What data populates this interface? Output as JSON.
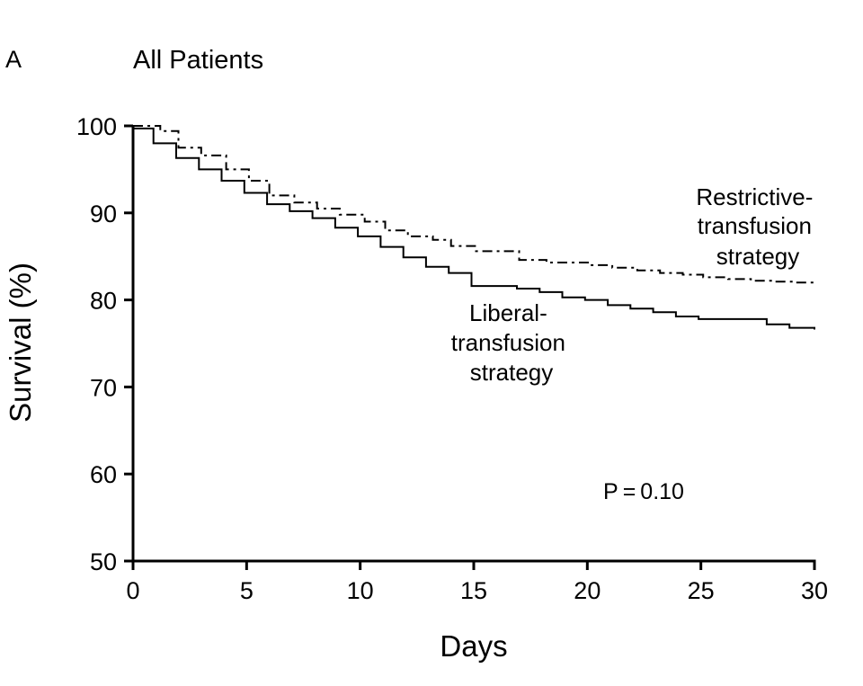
{
  "panel_label": "A",
  "chart_data": {
    "type": "line",
    "title": "All Patients",
    "xlabel": "Days",
    "ylabel": "Survival (%)",
    "xlim": [
      0,
      30
    ],
    "ylim": [
      50,
      100
    ],
    "x_ticks": [
      0,
      5,
      10,
      15,
      20,
      25,
      30
    ],
    "y_ticks": [
      50,
      60,
      70,
      80,
      90,
      100
    ],
    "step": true,
    "grid": false,
    "series": [
      {
        "label_lines": [
          "Liberal-",
          "transfusion",
          "strategy"
        ],
        "style": "solid",
        "color": "#000000",
        "x": [
          0,
          0.9,
          1.9,
          2.9,
          3.9,
          4.9,
          5.9,
          6.9,
          7.9,
          8.9,
          9.9,
          10.9,
          11.9,
          12.9,
          13.9,
          14.9,
          16.9,
          17.9,
          18.9,
          19.9,
          20.9,
          21.9,
          22.9,
          23.9,
          24.9,
          27.9,
          28.9,
          30
        ],
        "y": [
          99.7,
          98.0,
          96.3,
          95.0,
          93.7,
          92.3,
          91.0,
          90.2,
          89.4,
          88.3,
          87.3,
          86.1,
          84.9,
          83.8,
          83.1,
          81.6,
          81.3,
          80.9,
          80.3,
          80.0,
          79.4,
          79.0,
          78.6,
          78.1,
          77.8,
          77.2,
          76.8,
          76.6
        ]
      },
      {
        "label_lines": [
          "Restrictive-",
          "transfusion",
          "strategy"
        ],
        "style": "dashdot",
        "color": "#000000",
        "x": [
          0,
          1.2,
          2.0,
          3.0,
          4.1,
          5.1,
          6.0,
          7.1,
          8.1,
          9.1,
          10.2,
          11.1,
          12.1,
          13.2,
          14.0,
          15.1,
          17.0,
          18.2,
          20.1,
          21.1,
          22.2,
          23.2,
          24.2,
          25.1,
          26.2,
          27.2,
          28.2,
          29.1,
          30
        ],
        "y": [
          100,
          99.4,
          97.5,
          96.6,
          95.0,
          93.7,
          92.0,
          91.2,
          90.5,
          89.8,
          89.0,
          88.0,
          87.3,
          86.9,
          86.2,
          85.6,
          84.6,
          84.3,
          84.0,
          83.7,
          83.4,
          83.1,
          82.9,
          82.6,
          82.4,
          82.2,
          82.1,
          82.0,
          81.9
        ]
      }
    ],
    "annotations": [
      {
        "text": "P = 0.10"
      }
    ]
  }
}
